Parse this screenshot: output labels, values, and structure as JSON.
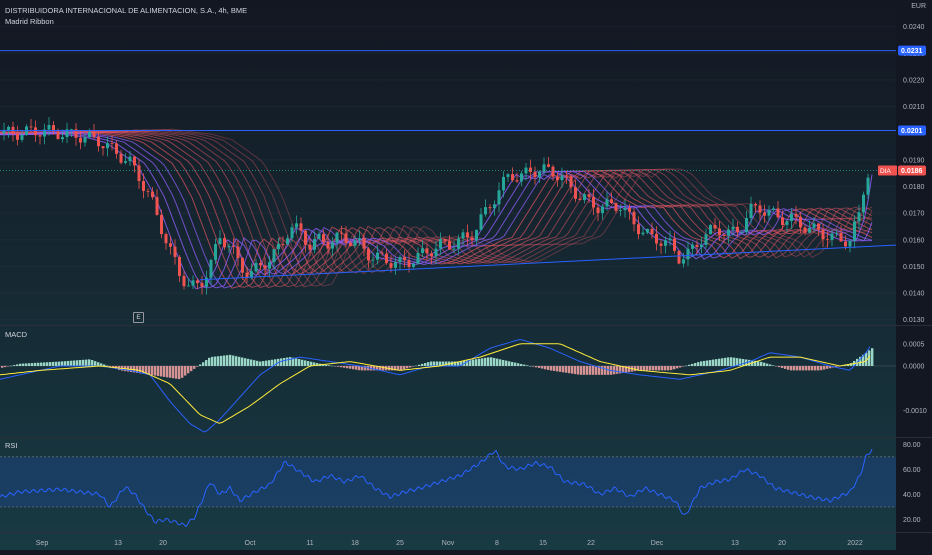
{
  "header": {
    "instrument": "DISTRIBUIDORA INTERNACIONAL DE ALIMENTACION, S.A., 4h, BME",
    "indicator": "Madrid Ribbon",
    "currency": "EUR",
    "earnings_badge": "E"
  },
  "colors": {
    "background": "#131722",
    "up_candle": "#26a69a",
    "down_candle": "#ef5350",
    "ribbon_red": "#e05563",
    "ribbon_purple": "#8f5cf7",
    "hline": "#2962ff",
    "rsi_line": "#2962ff",
    "macd_line": "#2962ff",
    "signal_line": "#ffeb3b"
  },
  "chart_data": [
    {
      "type": "candlestick",
      "panel": "price",
      "title": "DISTRIBUIDORA INTERNACIONAL DE ALIMENTACION, S.A., 4h, BME",
      "ylim": [
        0.0128,
        0.025
      ],
      "y_ticks": [
        "0.0240",
        "0.0230",
        "0.0220",
        "0.0210",
        "0.0200",
        "0.0190",
        "0.0180",
        "0.0170",
        "0.0160",
        "0.0150",
        "0.0140",
        "0.0130"
      ],
      "close_path": [
        [
          0,
          0.02
        ],
        [
          20,
          0.02
        ],
        [
          40,
          0.0201
        ],
        [
          60,
          0.02
        ],
        [
          80,
          0.0199
        ],
        [
          100,
          0.0197
        ],
        [
          115,
          0.0193
        ],
        [
          130,
          0.0189
        ],
        [
          140,
          0.0183
        ],
        [
          150,
          0.0176
        ],
        [
          160,
          0.0166
        ],
        [
          170,
          0.0156
        ],
        [
          180,
          0.0147
        ],
        [
          190,
          0.0142
        ],
        [
          200,
          0.0143
        ],
        [
          210,
          0.015
        ],
        [
          220,
          0.0161
        ],
        [
          230,
          0.0158
        ],
        [
          240,
          0.015
        ],
        [
          250,
          0.0147
        ],
        [
          260,
          0.015
        ],
        [
          270,
          0.0153
        ],
        [
          280,
          0.0157
        ],
        [
          290,
          0.0165
        ],
        [
          300,
          0.0163
        ],
        [
          310,
          0.0158
        ],
        [
          320,
          0.016
        ],
        [
          330,
          0.0159
        ],
        [
          340,
          0.0161
        ],
        [
          350,
          0.016
        ],
        [
          360,
          0.0158
        ],
        [
          370,
          0.0154
        ],
        [
          380,
          0.0153
        ],
        [
          390,
          0.0152
        ],
        [
          400,
          0.0151
        ],
        [
          410,
          0.0152
        ],
        [
          420,
          0.0154
        ],
        [
          430,
          0.0156
        ],
        [
          440,
          0.0158
        ],
        [
          450,
          0.0158
        ],
        [
          460,
          0.016
        ],
        [
          470,
          0.0161
        ],
        [
          480,
          0.0167
        ],
        [
          490,
          0.0173
        ],
        [
          500,
          0.0179
        ],
        [
          510,
          0.0185
        ],
        [
          520,
          0.0183
        ],
        [
          530,
          0.0186
        ],
        [
          540,
          0.0186
        ],
        [
          550,
          0.0186
        ],
        [
          560,
          0.0184
        ],
        [
          570,
          0.018
        ],
        [
          580,
          0.0176
        ],
        [
          590,
          0.0174
        ],
        [
          600,
          0.0172
        ],
        [
          610,
          0.0173
        ],
        [
          620,
          0.0173
        ],
        [
          630,
          0.0168
        ],
        [
          640,
          0.0164
        ],
        [
          650,
          0.0161
        ],
        [
          660,
          0.016
        ],
        [
          670,
          0.0158
        ],
        [
          680,
          0.0153
        ],
        [
          690,
          0.0155
        ],
        [
          700,
          0.016
        ],
        [
          710,
          0.0163
        ],
        [
          720,
          0.0164
        ],
        [
          730,
          0.0162
        ],
        [
          740,
          0.0164
        ],
        [
          750,
          0.0171
        ],
        [
          760,
          0.0172
        ],
        [
          770,
          0.017
        ],
        [
          780,
          0.0168
        ],
        [
          790,
          0.0168
        ],
        [
          800,
          0.0166
        ],
        [
          810,
          0.0164
        ],
        [
          820,
          0.0163
        ],
        [
          830,
          0.0161
        ],
        [
          840,
          0.016
        ],
        [
          850,
          0.016
        ],
        [
          860,
          0.017
        ],
        [
          866,
          0.0185
        ],
        [
          872,
          0.0186
        ]
      ],
      "horizontal_lines": [
        {
          "value": 0.0231,
          "label": "0.0231"
        },
        {
          "value": 0.0201,
          "label": "0.0201"
        }
      ],
      "trendline": {
        "from": [
          200,
          0.0145
        ],
        "to": [
          896,
          0.0158
        ]
      },
      "last_price": {
        "symbol": "DIA",
        "value": "0.0186"
      }
    },
    {
      "type": "line",
      "panel": "macd",
      "title": "MACD",
      "ylim": [
        -0.0016,
        0.0009
      ],
      "y_ticks": [
        "0.0005",
        "0.0000",
        "-0.0010"
      ],
      "series": [
        {
          "name": "",
          "role": "macd",
          "points": [
            [
              0,
              -0.0003
            ],
            [
              20,
              -0.0002
            ],
            [
              60,
              0.0
            ],
            [
              100,
              0.0
            ],
            [
              130,
              -0.0001
            ],
            [
              150,
              -0.0002
            ],
            [
              170,
              -0.0008
            ],
            [
              190,
              -0.0013
            ],
            [
              205,
              -0.0015
            ],
            [
              220,
              -0.0012
            ],
            [
              240,
              -0.0007
            ],
            [
              260,
              -0.0002
            ],
            [
              280,
              0.0001
            ],
            [
              300,
              0.0002
            ],
            [
              330,
              0.0001
            ],
            [
              360,
              0.0
            ],
            [
              400,
              -0.0002
            ],
            [
              430,
              0.0
            ],
            [
              460,
              0.0
            ],
            [
              490,
              0.0004
            ],
            [
              520,
              0.0006
            ],
            [
              550,
              0.0004
            ],
            [
              580,
              0.0001
            ],
            [
              610,
              -0.0001
            ],
            [
              640,
              -0.0002
            ],
            [
              680,
              -0.0003
            ],
            [
              720,
              -0.0001
            ],
            [
              750,
              0.0001
            ],
            [
              770,
              0.0003
            ],
            [
              800,
              0.0002
            ],
            [
              830,
              0.0
            ],
            [
              850,
              -0.0001
            ],
            [
              866,
              0.0003
            ],
            [
              872,
              0.0005
            ]
          ]
        },
        {
          "name": "",
          "role": "signal",
          "points": [
            [
              0,
              -0.0002
            ],
            [
              40,
              -0.0001
            ],
            [
              100,
              0.0
            ],
            [
              140,
              -0.0001
            ],
            [
              170,
              -0.0004
            ],
            [
              200,
              -0.0011
            ],
            [
              220,
              -0.0013
            ],
            [
              250,
              -0.0009
            ],
            [
              280,
              -0.0004
            ],
            [
              310,
              0.0
            ],
            [
              350,
              0.0001
            ],
            [
              400,
              -0.0001
            ],
            [
              440,
              0.0
            ],
            [
              480,
              0.0002
            ],
            [
              520,
              0.0005
            ],
            [
              560,
              0.0005
            ],
            [
              600,
              0.0001
            ],
            [
              640,
              -0.0001
            ],
            [
              690,
              -0.0002
            ],
            [
              730,
              -0.0001
            ],
            [
              770,
              0.0002
            ],
            [
              800,
              0.0002
            ],
            [
              840,
              0.0
            ],
            [
              866,
              0.0001
            ],
            [
              872,
              0.0003
            ]
          ]
        }
      ],
      "histogram": [
        [
          0,
          -5e-05
        ],
        [
          20,
          5e-05
        ],
        [
          60,
          0.0001
        ],
        [
          90,
          0.00015
        ],
        [
          120,
          -0.0001
        ],
        [
          150,
          -0.0002
        ],
        [
          180,
          -0.0003
        ],
        [
          210,
          0.0002
        ],
        [
          230,
          0.00025
        ],
        [
          260,
          0.0001
        ],
        [
          290,
          0.0002
        ],
        [
          320,
          5e-05
        ],
        [
          360,
          -0.0001
        ],
        [
          400,
          -0.0001
        ],
        [
          430,
          0.0001
        ],
        [
          460,
          0.0001
        ],
        [
          490,
          0.0002
        ],
        [
          520,
          5e-05
        ],
        [
          550,
          -0.0001
        ],
        [
          580,
          -0.0002
        ],
        [
          610,
          -0.0002
        ],
        [
          640,
          -0.0001
        ],
        [
          670,
          -0.0001
        ],
        [
          700,
          0.0001
        ],
        [
          730,
          0.0002
        ],
        [
          760,
          0.0001
        ],
        [
          790,
          -0.0001
        ],
        [
          820,
          -0.0001
        ],
        [
          850,
          5e-05
        ],
        [
          866,
          0.0003
        ],
        [
          872,
          0.0004
        ]
      ]
    },
    {
      "type": "line",
      "panel": "rsi",
      "title": "RSI",
      "ylim": [
        10,
        85
      ],
      "y_ticks": [
        "80.00",
        "60.00",
        "40.00",
        "20.00"
      ],
      "bands": [
        70,
        30
      ],
      "series": [
        {
          "name": "",
          "points": [
            [
              0,
              38
            ],
            [
              20,
              42
            ],
            [
              40,
              43
            ],
            [
              60,
              44
            ],
            [
              80,
              42
            ],
            [
              100,
              40
            ],
            [
              110,
              30
            ],
            [
              125,
              46
            ],
            [
              135,
              40
            ],
            [
              145,
              28
            ],
            [
              155,
              18
            ],
            [
              165,
              20
            ],
            [
              175,
              18
            ],
            [
              185,
              15
            ],
            [
              195,
              22
            ],
            [
              210,
              50
            ],
            [
              220,
              40
            ],
            [
              230,
              45
            ],
            [
              240,
              35
            ],
            [
              255,
              42
            ],
            [
              270,
              48
            ],
            [
              285,
              66
            ],
            [
              300,
              58
            ],
            [
              315,
              50
            ],
            [
              330,
              55
            ],
            [
              345,
              50
            ],
            [
              360,
              55
            ],
            [
              375,
              45
            ],
            [
              390,
              38
            ],
            [
              405,
              42
            ],
            [
              420,
              45
            ],
            [
              440,
              50
            ],
            [
              460,
              55
            ],
            [
              480,
              65
            ],
            [
              495,
              75
            ],
            [
              505,
              62
            ],
            [
              520,
              60
            ],
            [
              535,
              65
            ],
            [
              550,
              62
            ],
            [
              565,
              50
            ],
            [
              585,
              48
            ],
            [
              600,
              40
            ],
            [
              615,
              45
            ],
            [
              630,
              38
            ],
            [
              645,
              45
            ],
            [
              660,
              40
            ],
            [
              675,
              35
            ],
            [
              685,
              22
            ],
            [
              700,
              45
            ],
            [
              715,
              50
            ],
            [
              730,
              52
            ],
            [
              745,
              60
            ],
            [
              760,
              55
            ],
            [
              775,
              45
            ],
            [
              790,
              42
            ],
            [
              810,
              38
            ],
            [
              830,
              35
            ],
            [
              850,
              42
            ],
            [
              860,
              55
            ],
            [
              866,
              70
            ],
            [
              872,
              76
            ]
          ]
        }
      ]
    }
  ],
  "x_axis": [
    {
      "label": "Sep",
      "x": 42
    },
    {
      "label": "13",
      "x": 118
    },
    {
      "label": "20",
      "x": 163
    },
    {
      "label": "Oct",
      "x": 250
    },
    {
      "label": "11",
      "x": 310
    },
    {
      "label": "18",
      "x": 355
    },
    {
      "label": "25",
      "x": 400
    },
    {
      "label": "Nov",
      "x": 448
    },
    {
      "label": "8",
      "x": 497
    },
    {
      "label": "15",
      "x": 543
    },
    {
      "label": "22",
      "x": 591
    },
    {
      "label": "Dec",
      "x": 657
    },
    {
      "label": "13",
      "x": 735
    },
    {
      "label": "20",
      "x": 782
    },
    {
      "label": "2022",
      "x": 855
    }
  ],
  "rsi_labels": {
    "title": "RSI"
  },
  "macd_labels": {
    "title": "MACD"
  }
}
